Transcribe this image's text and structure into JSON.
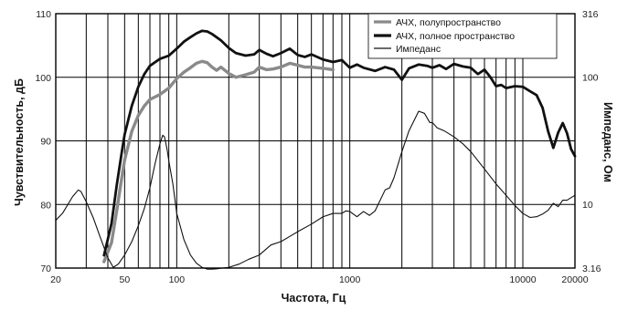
{
  "chart_data": {
    "type": "line",
    "xlabel": "Частота, Гц",
    "ylabel_left": "Чувствительность, дБ",
    "ylabel_right": "Импеданс, Ом",
    "x_scale": "log",
    "xlim": [
      20,
      20000
    ],
    "ylim_left": [
      70,
      110
    ],
    "ylim_right": [
      3.16,
      316
    ],
    "y_right_scale": "log",
    "x_ticks": [
      "20",
      "50",
      "100",
      "1000",
      "10000",
      "20000"
    ],
    "y_left_ticks": [
      "70",
      "80",
      "90",
      "100",
      "110"
    ],
    "y_right_ticks": [
      "3.16",
      "10",
      "100",
      "316"
    ],
    "grid": "vertical log gridlines at 20–100, 200–1000, 2000–10000, 20000; horizontal at 80, 90, 100",
    "legend_position": "top-right",
    "series": [
      {
        "name": "АЧХ, полупространство",
        "axis": "left",
        "color": "#8a8a8a",
        "x": [
          38,
          42,
          45,
          48,
          50,
          55,
          60,
          65,
          70,
          80,
          90,
          100,
          110,
          120,
          130,
          140,
          150,
          160,
          170,
          180,
          200,
          220,
          250,
          280,
          300,
          330,
          360,
          400,
          450,
          500,
          550,
          600,
          700,
          800
        ],
        "values": [
          71,
          74,
          79,
          84,
          87,
          91.5,
          94,
          95.5,
          96.5,
          97.3,
          98.3,
          99.8,
          100.8,
          101.5,
          102.2,
          102.5,
          102.3,
          101.6,
          101.1,
          101.6,
          100.6,
          100.0,
          100.4,
          100.8,
          101.6,
          101.2,
          101.3,
          101.6,
          102.2,
          101.9,
          101.6,
          101.6,
          101.4,
          101.2
        ]
      },
      {
        "name": "АЧХ, полное пространство",
        "axis": "left",
        "color": "#111111",
        "x": [
          38,
          42,
          45,
          48,
          50,
          55,
          60,
          65,
          70,
          80,
          90,
          100,
          110,
          120,
          130,
          140,
          150,
          160,
          180,
          200,
          220,
          250,
          280,
          300,
          330,
          360,
          400,
          450,
          500,
          550,
          600,
          700,
          800,
          900,
          1000,
          1100,
          1200,
          1400,
          1600,
          1800,
          2000,
          2200,
          2500,
          2800,
          3000,
          3300,
          3600,
          4000,
          4500,
          5000,
          5500,
          6000,
          6500,
          7000,
          7500,
          8000,
          9000,
          10000,
          11000,
          12000,
          13000,
          14000,
          15000,
          16000,
          17000,
          18000,
          19000,
          20000
        ],
        "values": [
          72,
          77,
          83,
          88,
          91,
          95.5,
          98.5,
          100.5,
          101.8,
          102.9,
          103.4,
          104.5,
          105.6,
          106.3,
          106.9,
          107.3,
          107.2,
          106.8,
          105.8,
          104.6,
          103.8,
          103.4,
          103.6,
          104.3,
          103.7,
          103.3,
          103.8,
          104.5,
          103.5,
          103.2,
          103.6,
          102.8,
          102.4,
          102.7,
          101.5,
          102.0,
          101.5,
          101.0,
          101.6,
          101.2,
          99.6,
          101.4,
          102.0,
          101.8,
          101.5,
          101.9,
          101.3,
          102.1,
          101.7,
          101.5,
          100.5,
          101.2,
          100.0,
          98.6,
          98.8,
          98.3,
          98.6,
          98.5,
          97.8,
          97.2,
          95.2,
          91.5,
          88.9,
          91.3,
          92.8,
          91.2,
          88.7,
          87.6
        ]
      },
      {
        "name": "Импеданс",
        "axis": "right",
        "color": "#111111",
        "x": [
          20,
          22,
          25,
          27,
          28,
          30,
          33,
          36,
          40,
          43,
          46,
          50,
          55,
          60,
          65,
          70,
          75,
          80,
          83,
          85,
          88,
          90,
          95,
          100,
          110,
          120,
          130,
          140,
          150,
          160,
          170,
          180,
          200,
          230,
          260,
          300,
          350,
          400,
          450,
          500,
          600,
          700,
          800,
          900,
          950,
          1000,
          1100,
          1200,
          1300,
          1400,
          1600,
          1700,
          1800,
          2000,
          2200,
          2500,
          2700,
          2900,
          3000,
          3200,
          3500,
          4000,
          4500,
          5000,
          6000,
          7000,
          8000,
          9000,
          10000,
          11000,
          12000,
          13000,
          14000,
          15000,
          16000,
          17000,
          18000,
          20000
        ],
        "values": [
          7.5,
          8.6,
          11.5,
          13.0,
          12.6,
          10.5,
          7.8,
          5.6,
          3.8,
          3.2,
          3.4,
          4.0,
          5.1,
          6.8,
          9.3,
          13.5,
          21,
          30,
          35,
          34,
          27,
          22,
          14.5,
          8.5,
          5.3,
          4.0,
          3.45,
          3.2,
          3.1,
          3.1,
          3.12,
          3.15,
          3.2,
          3.4,
          3.7,
          4.0,
          4.8,
          5.1,
          5.6,
          6.1,
          7.0,
          8.0,
          8.5,
          8.5,
          8.9,
          8.8,
          8.0,
          8.8,
          8.2,
          8.9,
          13.0,
          13.5,
          16.2,
          26,
          38,
          54,
          52,
          44,
          44,
          40,
          38,
          34,
          30,
          26,
          19,
          14.5,
          11.8,
          9.8,
          8.5,
          7.9,
          8.0,
          8.4,
          9.0,
          10.2,
          9.6,
          10.8,
          10.8,
          11.8
        ]
      }
    ]
  }
}
